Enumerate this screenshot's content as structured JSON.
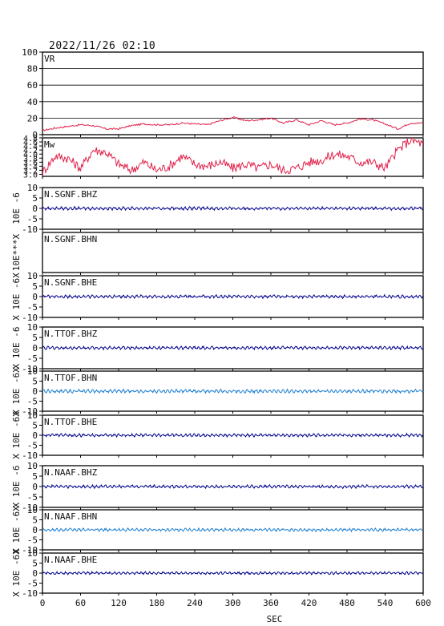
{
  "header": {
    "timestamp": "2022/11/26 02:10"
  },
  "colors": {
    "frame": "#000000",
    "vr_line": "#e0204a",
    "mw_line": "#e0204a",
    "trace_dark": "#00008b",
    "trace_light": "#1e7fd2",
    "grid": "#000000"
  },
  "x_axis": {
    "label": "SEC",
    "ticks": [
      "0",
      "60",
      "120",
      "180",
      "240",
      "300",
      "360",
      "420",
      "480",
      "540",
      "600"
    ],
    "range": [
      0,
      600
    ]
  },
  "chart_data": [
    {
      "type": "line",
      "label": "VR",
      "ylim": [
        0,
        100
      ],
      "y_ticks": [
        "100",
        "80",
        "60",
        "40",
        "20",
        "0"
      ],
      "grid": true,
      "color": "#e0204a",
      "x": [
        0,
        20,
        40,
        60,
        80,
        100,
        120,
        140,
        160,
        180,
        200,
        220,
        240,
        260,
        280,
        300,
        320,
        340,
        360,
        380,
        400,
        420,
        440,
        460,
        480,
        500,
        520,
        540,
        560,
        580,
        600
      ],
      "values": [
        5,
        8,
        10,
        12,
        11,
        7,
        7,
        11,
        13,
        12,
        12,
        14,
        13,
        12,
        17,
        21,
        17,
        18,
        20,
        14,
        18,
        12,
        17,
        12,
        14,
        19,
        18,
        13,
        7,
        14,
        14
      ]
    },
    {
      "type": "line",
      "label": "Mw",
      "ylim": [
        2.9,
        4.8
      ],
      "y_ticks": [
        "4.8",
        "4.6",
        "4.4",
        "4.2",
        "4.0",
        "3.8",
        "3.6",
        "3.4",
        "3.2",
        "3.0"
      ],
      "grid": false,
      "color": "#e0204a",
      "x": [
        0,
        20,
        40,
        60,
        80,
        100,
        120,
        140,
        160,
        180,
        200,
        220,
        240,
        260,
        280,
        300,
        320,
        340,
        360,
        380,
        400,
        420,
        440,
        460,
        480,
        500,
        520,
        540,
        560,
        580,
        600
      ],
      "values": [
        3.1,
        3.9,
        3.8,
        3.3,
        4.2,
        4.1,
        3.5,
        3.2,
        3.6,
        3.2,
        3.4,
        3.9,
        3.5,
        3.4,
        3.6,
        3.3,
        3.5,
        3.3,
        3.5,
        3.2,
        3.3,
        3.6,
        3.7,
        4.0,
        3.9,
        3.6,
        3.6,
        3.3,
        4.2,
        4.7,
        4.5
      ]
    },
    {
      "type": "line",
      "label": "N.SGNF.BHZ",
      "ylabel": "10E -6",
      "ylim": [
        -10,
        10
      ],
      "y_ticks": [
        "10",
        "5",
        "0",
        "-5",
        "-10"
      ],
      "color": "#00008b",
      "amplitude": 0.8
    },
    {
      "type": "line",
      "label": "N.SGNF.BHN",
      "ylabel": "10E***X",
      "ylim": null,
      "y_ticks": [],
      "color": "#00008b",
      "amplitude": 0
    },
    {
      "type": "line",
      "label": "N.SGNF.BHE",
      "ylabel": "X 10E -6X",
      "ylim": [
        -10,
        10
      ],
      "y_ticks": [
        "10",
        "5",
        "0",
        "-5",
        "-10"
      ],
      "color": "#00008b",
      "amplitude": 0.8
    },
    {
      "type": "line",
      "label": "N.TTOF.BHZ",
      "ylabel": "X 10E -6",
      "ylim": [
        -10,
        10
      ],
      "y_ticks": [
        "10",
        "5",
        "0",
        "-5",
        "-10"
      ],
      "color": "#00008b",
      "amplitude": 0.8
    },
    {
      "type": "line",
      "label": "N.TTOF.BHN",
      "ylabel": "X 10E -6X",
      "ylim": [
        -10,
        10
      ],
      "y_ticks": [
        "10",
        "5",
        "0",
        "-5",
        "-10"
      ],
      "color": "#1e7fd2",
      "amplitude": 0.9
    },
    {
      "type": "line",
      "label": "N.TTOF.BHE",
      "ylabel": "X 10E -6X",
      "ylim": [
        -10,
        10
      ],
      "y_ticks": [
        "10",
        "5",
        "0",
        "-5",
        "-10"
      ],
      "color": "#00008b",
      "amplitude": 0.8
    },
    {
      "type": "line",
      "label": "N.NAAF.BHZ",
      "ylabel": "X 10E -6",
      "ylim": [
        -10,
        10
      ],
      "y_ticks": [
        "10",
        "5",
        "0",
        "-5",
        "-10"
      ],
      "color": "#00008b",
      "amplitude": 0.8
    },
    {
      "type": "line",
      "label": "N.NAAF.BHN",
      "ylabel": "X 10E -6X",
      "ylim": [
        -10,
        10
      ],
      "y_ticks": [
        "10",
        "5",
        "0",
        "-5",
        "-10"
      ],
      "color": "#1e7fd2",
      "amplitude": 0.8
    },
    {
      "type": "line",
      "label": "N.NAAF.BHE",
      "ylabel": "X 10E -6X",
      "ylim": [
        -10,
        10
      ],
      "y_ticks": [
        "10",
        "5",
        "0",
        "-5",
        "-10"
      ],
      "color": "#00008b",
      "amplitude": 0.7
    }
  ]
}
